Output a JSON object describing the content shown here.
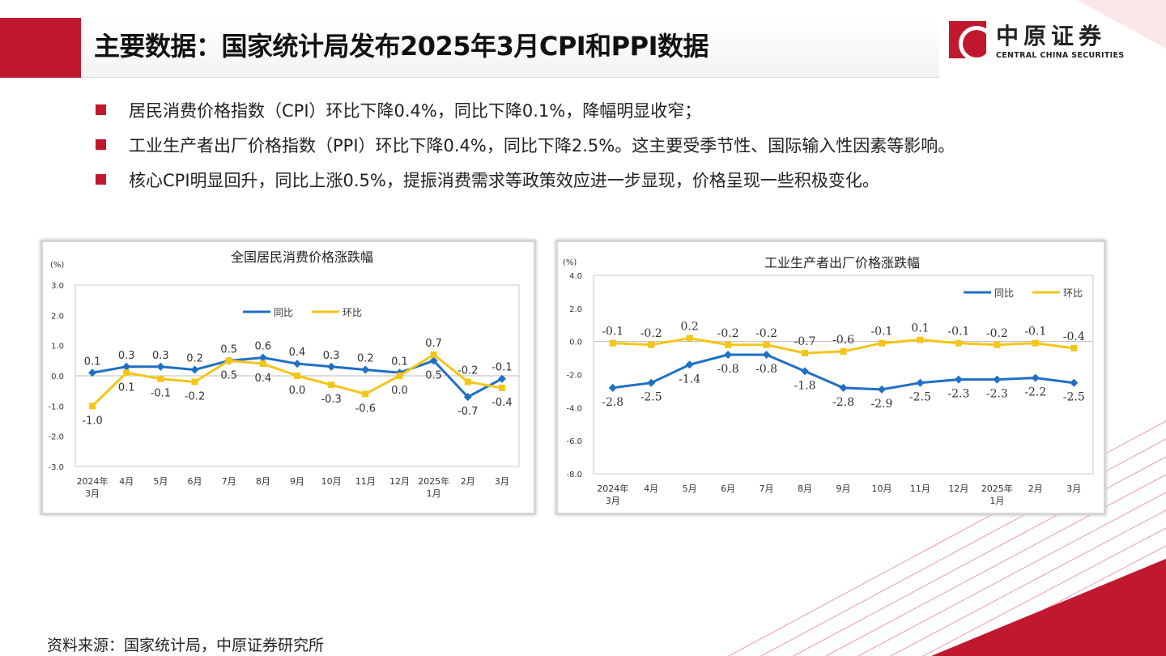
{
  "header": {
    "title": "主要数据：国家统计局发布2025年3月CPI和PPI数据",
    "logo_cn": "中原证券",
    "logo_en": "CENTRAL CHINA SECURITIES"
  },
  "bullets": [
    "居民消费价格指数（CPI）环比下降0.4%，同比下降0.1%，降幅明显收窄；",
    "工业生产者出厂价格指数（PPI）环比下降0.4%，同比下降2.5%。这主要受季节性、国际输入性因素等影响。",
    "核心CPI明显回升，同比上涨0.5%，提振消费需求等政策效应进一步显现，价格呈现一些积极变化。"
  ],
  "source": "资料来源：国家统计局，中原证券研究所",
  "colors": {
    "brand": "#c0192f",
    "yoy": "#1f6fc5",
    "mom": "#f5c518"
  },
  "chart_data": [
    {
      "type": "line",
      "title": "全国居民消费价格涨跌幅",
      "ylabel": "(%)",
      "ylim": [
        -3,
        3
      ],
      "yticks": [
        "3.0",
        "2.0",
        "1.0",
        "0.0",
        "-1.0",
        "-2.0",
        "-3.0"
      ],
      "categories": [
        "2024年\n3月",
        "4月",
        "5月",
        "6月",
        "7月",
        "8月",
        "9月",
        "10月",
        "11月",
        "12月",
        "2025年\n1月",
        "2月",
        "3月"
      ],
      "series": [
        {
          "name": "同比",
          "values": [
            0.1,
            0.3,
            0.3,
            0.2,
            0.5,
            0.6,
            0.4,
            0.3,
            0.2,
            0.1,
            0.5,
            -0.7,
            -0.1
          ]
        },
        {
          "name": "环比",
          "values": [
            -1.0,
            0.1,
            -0.1,
            -0.2,
            0.5,
            0.4,
            0.0,
            -0.3,
            -0.6,
            0.0,
            0.7,
            -0.2,
            -0.4
          ]
        }
      ],
      "legend": "top-center"
    },
    {
      "type": "line",
      "title": "工业生产者出厂价格涨跌幅",
      "ylabel": "(%)",
      "ylim": [
        -8,
        4
      ],
      "yticks": [
        "4.0",
        "2.0",
        "0.0",
        "-2.0",
        "-4.0",
        "-6.0",
        "-8.0"
      ],
      "categories": [
        "2024年\n3月",
        "4月",
        "5月",
        "6月",
        "7月",
        "8月",
        "9月",
        "10月",
        "11月",
        "12月",
        "2025年\n1月",
        "2月",
        "3月"
      ],
      "series": [
        {
          "name": "同比",
          "values": [
            -2.8,
            -2.5,
            -1.4,
            -0.8,
            -0.8,
            -1.8,
            -2.8,
            -2.9,
            -2.5,
            -2.3,
            -2.3,
            -2.2,
            -2.5
          ]
        },
        {
          "name": "环比",
          "values": [
            -0.1,
            -0.2,
            0.2,
            -0.2,
            -0.2,
            -0.7,
            -0.6,
            -0.1,
            0.1,
            -0.1,
            -0.2,
            -0.1,
            -0.4
          ]
        }
      ],
      "legend": "top-right"
    }
  ]
}
